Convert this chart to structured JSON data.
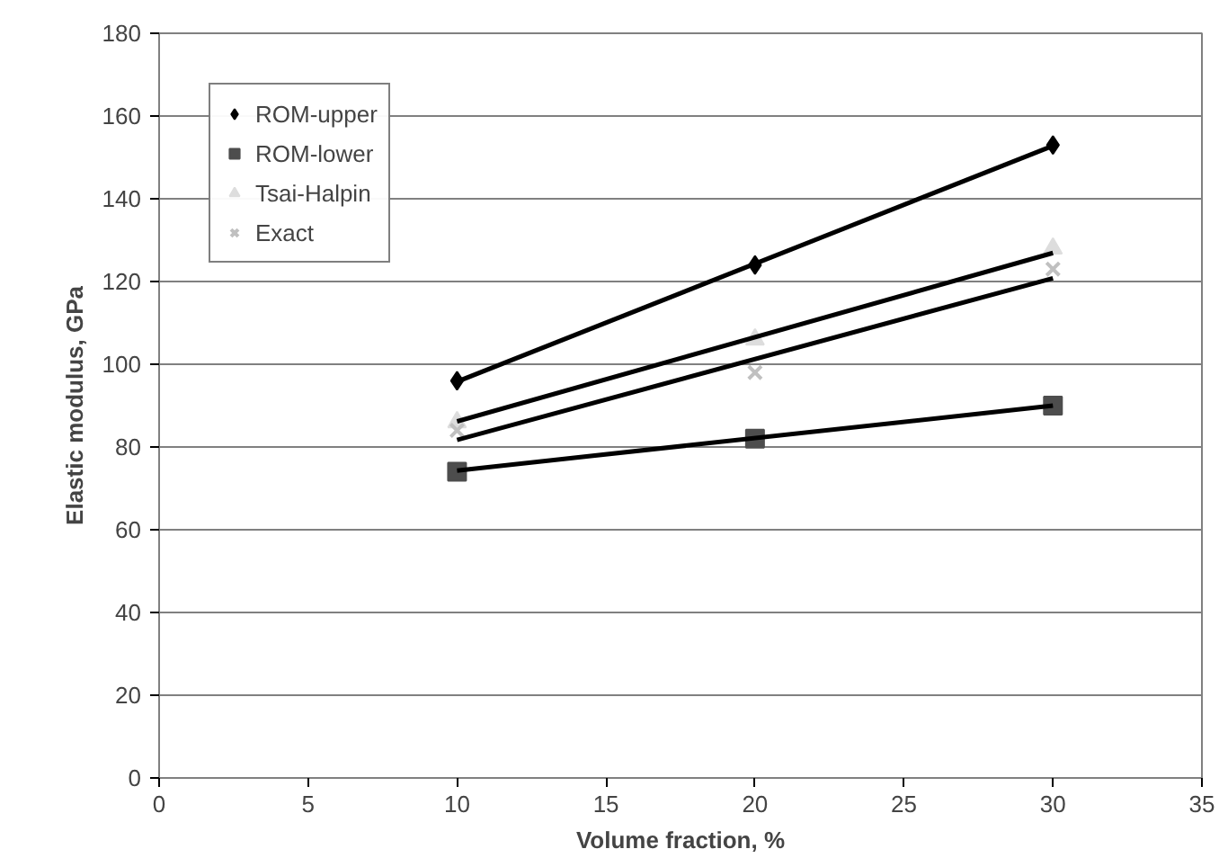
{
  "chart_data": {
    "type": "scatter",
    "xlabel": "Volume fraction, %",
    "ylabel": "Elastic modulus, GPa",
    "xlim": [
      0,
      35
    ],
    "xticks": [
      0,
      5,
      10,
      15,
      20,
      25,
      30,
      35
    ],
    "ylim": [
      0,
      180
    ],
    "yticks": [
      0,
      20,
      40,
      60,
      80,
      100,
      120,
      140,
      160,
      180
    ],
    "grid": "y",
    "legend": "top left",
    "series": [
      {
        "name": "ROM-upper",
        "color": "#000000",
        "marker": "diamond",
        "x": [
          10,
          20,
          30
        ],
        "values": [
          96,
          124,
          153
        ]
      },
      {
        "name": "ROM-lower",
        "color": "#4d4d4d",
        "marker": "square",
        "x": [
          10,
          20,
          30
        ],
        "values": [
          74,
          82,
          90
        ]
      },
      {
        "name": "Tsai-Halpin",
        "color": "#dddddd",
        "marker": "triangle",
        "x": [
          10,
          20,
          30
        ],
        "values": [
          86,
          106,
          128
        ]
      },
      {
        "name": "Exact",
        "color": "#c0c0c0",
        "marker": "cross",
        "x": [
          10,
          20,
          30
        ],
        "values": [
          84,
          98,
          123
        ]
      },
      {
        "type": "line",
        "color": "#000000",
        "x": [
          10,
          30
        ],
        "values": [
          95.8,
          152.8
        ]
      },
      {
        "type": "line",
        "color": "#000000",
        "x": [
          10,
          30
        ],
        "values": [
          74.3,
          90.0
        ]
      },
      {
        "type": "line",
        "color": "#000000",
        "x": [
          10,
          30
        ],
        "values": [
          86.2,
          126.9
        ]
      },
      {
        "type": "line",
        "color": "#000000",
        "x": [
          10,
          30
        ],
        "values": [
          81.7,
          120.8
        ]
      }
    ]
  }
}
